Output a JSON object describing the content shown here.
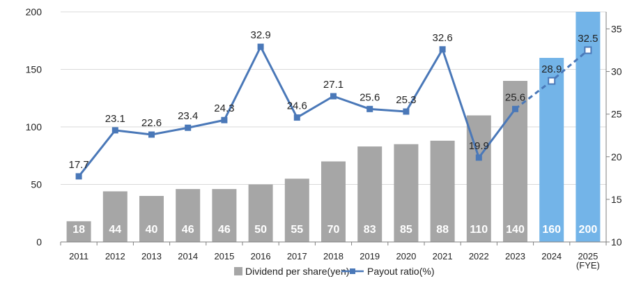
{
  "chart_data": {
    "type": "bar",
    "categories": [
      "2011",
      "2012",
      "2013",
      "2014",
      "2015",
      "2016",
      "2017",
      "2018",
      "2019",
      "2020",
      "2021",
      "2022",
      "2023",
      "2024",
      "2025"
    ],
    "category_notes": {
      "2025": "(FYE)"
    },
    "series": [
      {
        "name": "Dividend per share(yen)",
        "type": "bar",
        "axis": "left",
        "values": [
          18,
          44,
          40,
          46,
          46,
          50,
          55,
          70,
          83,
          85,
          88,
          110,
          140,
          160,
          200
        ],
        "color": "#a6a6a6",
        "forecast_color": "#73b4e8",
        "forecast_from_index": 13
      },
      {
        "name": "Payout ratio(%)",
        "type": "line",
        "axis": "right",
        "values": [
          17.7,
          23.1,
          22.6,
          23.4,
          24.3,
          32.9,
          24.6,
          27.1,
          25.6,
          25.3,
          32.6,
          19.9,
          25.6,
          28.9,
          32.5
        ],
        "color": "#4a78b8",
        "dashed_from_index": 12
      }
    ],
    "left_axis": {
      "min": 0,
      "max": 200,
      "ticks": [
        0,
        50,
        100,
        150,
        200
      ]
    },
    "right_axis": {
      "min": 10,
      "max": 37,
      "ticks": [
        10,
        15,
        20,
        25,
        30,
        35
      ]
    },
    "grid": true,
    "legend": "bottom"
  }
}
